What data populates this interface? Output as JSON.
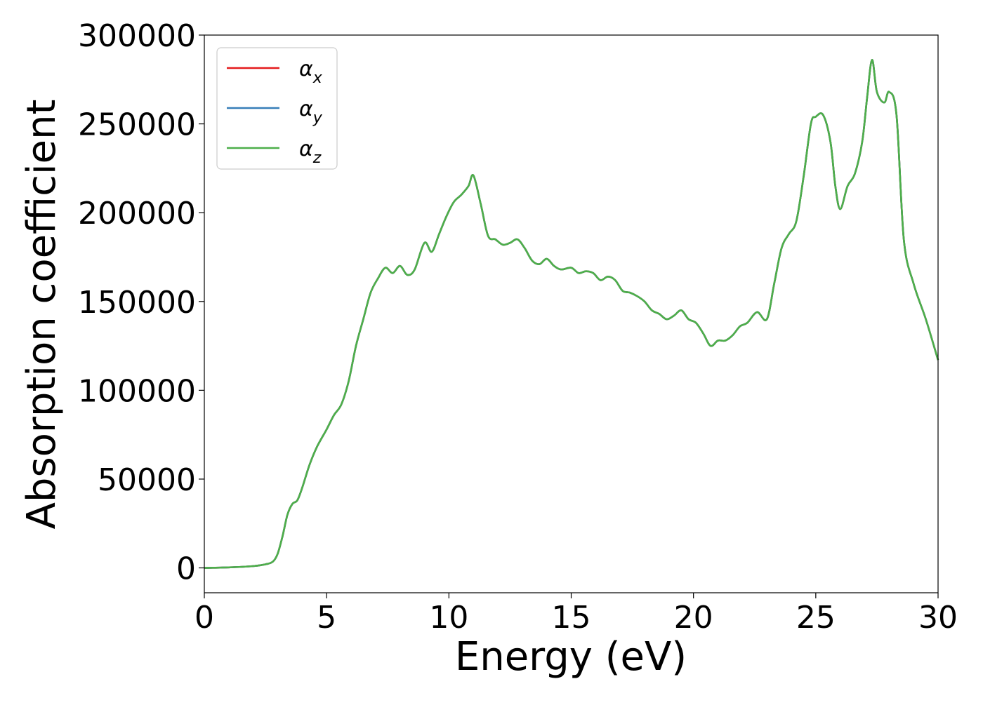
{
  "chart_data": {
    "type": "line",
    "xlabel": "Energy (eV)",
    "ylabel": "Absorption coefficient",
    "xlim": [
      0,
      30
    ],
    "ylim": [
      -14000,
      300000
    ],
    "xticks": [
      0,
      5,
      10,
      15,
      20,
      25,
      30
    ],
    "xtick_labels": [
      "0",
      "5",
      "10",
      "15",
      "20",
      "25",
      "30"
    ],
    "yticks": [
      0,
      50000,
      100000,
      150000,
      200000,
      250000,
      300000
    ],
    "ytick_labels": [
      "0",
      "50000",
      "100000",
      "150000",
      "200000",
      "250000",
      "300000"
    ],
    "grid": false,
    "legend_position": "top-left",
    "x": [
      0,
      1,
      2,
      2.5,
      2.8,
      3.0,
      3.2,
      3.4,
      3.6,
      3.8,
      4.0,
      4.3,
      4.6,
      5.0,
      5.3,
      5.6,
      5.9,
      6.2,
      6.5,
      6.8,
      7.1,
      7.4,
      7.7,
      8.0,
      8.3,
      8.6,
      9.0,
      9.3,
      9.6,
      9.9,
      10.2,
      10.5,
      10.8,
      11.0,
      11.3,
      11.6,
      11.9,
      12.2,
      12.5,
      12.8,
      13.1,
      13.4,
      13.7,
      14.0,
      14.3,
      14.6,
      15.0,
      15.3,
      15.6,
      15.9,
      16.2,
      16.5,
      16.8,
      17.1,
      17.4,
      17.7,
      18.0,
      18.3,
      18.6,
      18.9,
      19.2,
      19.5,
      19.8,
      20.1,
      20.4,
      20.7,
      21.0,
      21.3,
      21.6,
      21.9,
      22.2,
      22.6,
      23.0,
      23.3,
      23.6,
      23.9,
      24.2,
      24.5,
      24.8,
      25.0,
      25.3,
      25.6,
      25.8,
      26.0,
      26.3,
      26.6,
      26.9,
      27.1,
      27.3,
      27.5,
      27.8,
      28.0,
      28.3,
      28.6,
      29.0,
      29.5,
      30.0
    ],
    "series": [
      {
        "name": "α_x",
        "color": "#e41a1c",
        "values": [
          0,
          300,
          1000,
          2000,
          3500,
          8000,
          18000,
          30000,
          36000,
          38000,
          45000,
          58000,
          68000,
          78000,
          86000,
          92000,
          105000,
          125000,
          140000,
          155000,
          163000,
          169000,
          166000,
          170000,
          165000,
          168000,
          183000,
          178000,
          188000,
          198000,
          206000,
          210000,
          215000,
          221000,
          205000,
          187000,
          185000,
          182000,
          183000,
          185000,
          180000,
          173000,
          171000,
          174000,
          170000,
          168000,
          169000,
          166000,
          167000,
          166000,
          162000,
          164000,
          162000,
          156000,
          155000,
          153000,
          150000,
          145000,
          143000,
          140000,
          142000,
          145000,
          140000,
          138000,
          132000,
          125000,
          128000,
          128000,
          131000,
          136000,
          138000,
          144000,
          140000,
          160000,
          180000,
          188000,
          195000,
          220000,
          250000,
          254000,
          255000,
          240000,
          215000,
          202000,
          215000,
          222000,
          240000,
          265000,
          286000,
          268000,
          262000,
          268000,
          255000,
          185000,
          160000,
          140000,
          117000
        ]
      },
      {
        "name": "α_y",
        "color": "#377eb8",
        "values": [
          0,
          300,
          1000,
          2000,
          3500,
          8000,
          18000,
          30000,
          36000,
          38000,
          45000,
          58000,
          68000,
          78000,
          86000,
          92000,
          105000,
          125000,
          140000,
          155000,
          163000,
          169000,
          166000,
          170000,
          165000,
          168000,
          183000,
          178000,
          188000,
          198000,
          206000,
          210000,
          215000,
          221000,
          205000,
          187000,
          185000,
          182000,
          183000,
          185000,
          180000,
          173000,
          171000,
          174000,
          170000,
          168000,
          169000,
          166000,
          167000,
          166000,
          162000,
          164000,
          162000,
          156000,
          155000,
          153000,
          150000,
          145000,
          143000,
          140000,
          142000,
          145000,
          140000,
          138000,
          132000,
          125000,
          128000,
          128000,
          131000,
          136000,
          138000,
          144000,
          140000,
          160000,
          180000,
          188000,
          195000,
          220000,
          250000,
          254000,
          255000,
          240000,
          215000,
          202000,
          215000,
          222000,
          240000,
          265000,
          286000,
          268000,
          262000,
          268000,
          255000,
          185000,
          160000,
          140000,
          117000
        ]
      },
      {
        "name": "α_z",
        "color": "#4daf4a",
        "values": [
          0,
          300,
          1000,
          2000,
          3500,
          8000,
          18000,
          30000,
          36000,
          38000,
          45000,
          58000,
          68000,
          78000,
          86000,
          92000,
          105000,
          125000,
          140000,
          155000,
          163000,
          169000,
          166000,
          170000,
          165000,
          168000,
          183000,
          178000,
          188000,
          198000,
          206000,
          210000,
          215000,
          221000,
          205000,
          187000,
          185000,
          182000,
          183000,
          185000,
          180000,
          173000,
          171000,
          174000,
          170000,
          168000,
          169000,
          166000,
          167000,
          166000,
          162000,
          164000,
          162000,
          156000,
          155000,
          153000,
          150000,
          145000,
          143000,
          140000,
          142000,
          145000,
          140000,
          138000,
          132000,
          125000,
          128000,
          128000,
          131000,
          136000,
          138000,
          144000,
          140000,
          160000,
          180000,
          188000,
          195000,
          220000,
          250000,
          254000,
          255000,
          240000,
          215000,
          202000,
          215000,
          222000,
          240000,
          265000,
          286000,
          268000,
          262000,
          268000,
          255000,
          185000,
          160000,
          140000,
          117000
        ]
      }
    ],
    "legend": [
      {
        "base": "α",
        "sub": "x"
      },
      {
        "base": "α",
        "sub": "y"
      },
      {
        "base": "α",
        "sub": "z"
      }
    ]
  }
}
